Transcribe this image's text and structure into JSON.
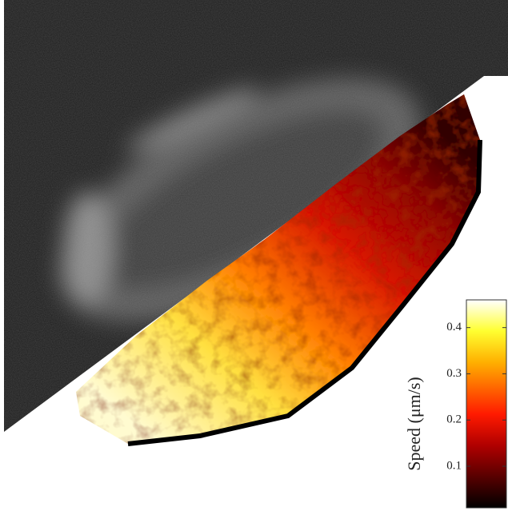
{
  "chart_data": {
    "type": "colorbar",
    "label": "Speed (μm/s)",
    "ylim": [
      0.01,
      0.46
    ],
    "yticks": [
      0.1,
      0.2,
      0.3,
      0.4
    ]
  }
}
